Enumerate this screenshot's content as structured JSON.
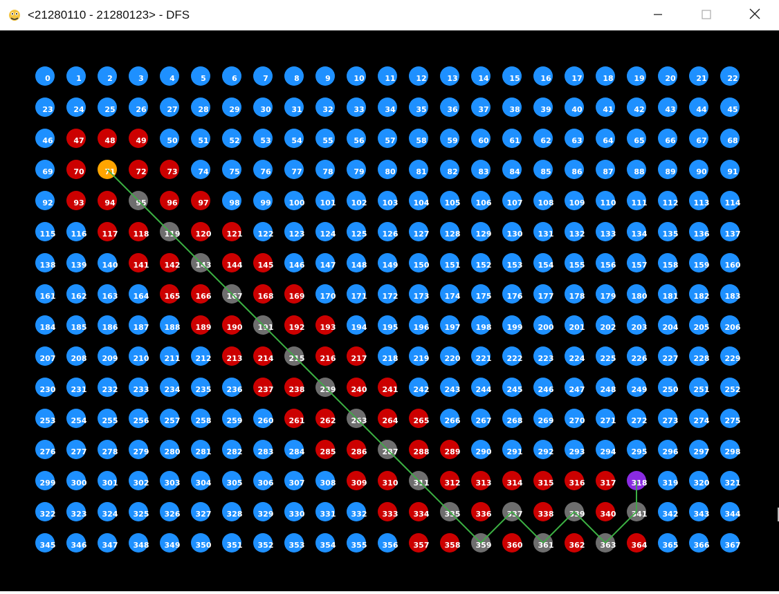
{
  "window": {
    "title": "<21280110 - 21280123> - DFS",
    "icon": "snake-python-icon",
    "controls": [
      "minimize",
      "maximize",
      "close"
    ]
  },
  "grid": {
    "columns": 23,
    "rows": 16,
    "labels": "0-367 (row-major, label = row*23 + col)",
    "colors": {
      "unvisited": "#1e90ff",
      "visited": "#cc0000",
      "path": "#6e6e6e",
      "start": "#ffa500",
      "goal": "#8a2be2",
      "path_line": "#3cb043",
      "label": "#ffffff",
      "background": "#000000"
    },
    "start_node": 71,
    "goal_node": 318,
    "visited_nodes": [
      47,
      48,
      49,
      70,
      72,
      73,
      93,
      94,
      96,
      97,
      117,
      118,
      120,
      121,
      141,
      142,
      144,
      145,
      165,
      166,
      168,
      169,
      189,
      190,
      192,
      193,
      213,
      214,
      216,
      217,
      237,
      238,
      240,
      241,
      261,
      262,
      264,
      265,
      285,
      286,
      288,
      289,
      309,
      310,
      312,
      313,
      314,
      315,
      316,
      317,
      333,
      334,
      336,
      338,
      340,
      357,
      358,
      360,
      362,
      364
    ],
    "path_nodes": [
      71,
      95,
      119,
      143,
      167,
      191,
      215,
      239,
      263,
      287,
      311,
      335,
      359,
      337,
      361,
      339,
      363,
      341,
      318
    ]
  }
}
